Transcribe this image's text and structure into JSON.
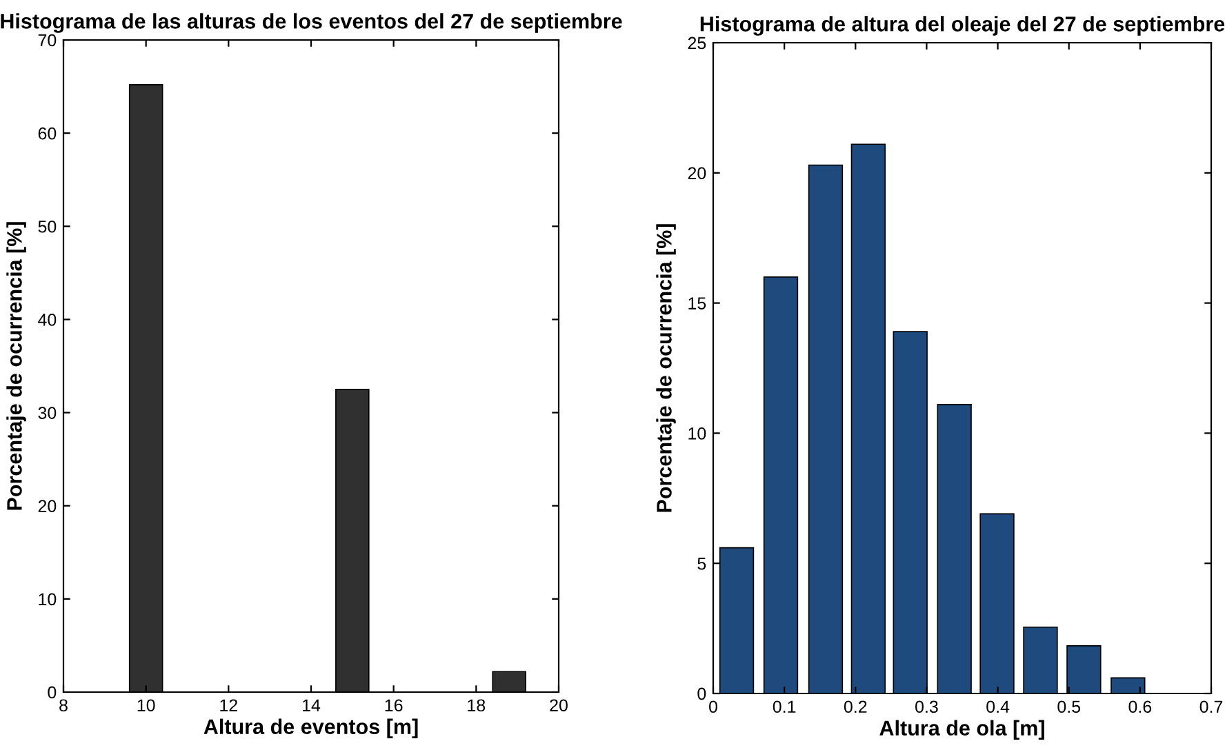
{
  "chart_data": [
    {
      "type": "bar",
      "title": "Histograma de las alturas de los eventos del 27 de septiembre",
      "xlabel": "Altura de eventos [m]",
      "ylabel": "Porcentaje de ocurrencia [%]",
      "x": [
        10,
        15,
        18.8
      ],
      "values": [
        65.2,
        32.5,
        2.2
      ],
      "color": "#303030",
      "xlim": [
        8,
        20
      ],
      "xticks": [
        8,
        10,
        12,
        14,
        16,
        18,
        20
      ],
      "ylim": [
        0,
        70
      ],
      "yticks": [
        0,
        10,
        20,
        30,
        40,
        50,
        60,
        70
      ],
      "grid": false
    },
    {
      "type": "bar",
      "title": "Histograma de altura del oleaje del 27 de septiembre",
      "xlabel": "Altura de ola [m]",
      "ylabel": "Porcentaje de ocurrencia [%]",
      "x": [
        0.033,
        0.095,
        0.158,
        0.218,
        0.277,
        0.339,
        0.399,
        0.46,
        0.521,
        0.583
      ],
      "values": [
        5.6,
        16.0,
        20.3,
        21.1,
        13.9,
        11.1,
        6.9,
        2.55,
        1.83,
        0.6
      ],
      "color": "#1f4a7e",
      "xlim": [
        0,
        0.7
      ],
      "xticks": [
        0,
        0.1,
        0.2,
        0.3,
        0.4,
        0.5,
        0.6,
        0.7
      ],
      "ylim": [
        0,
        25
      ],
      "yticks": [
        0,
        5,
        10,
        15,
        20,
        25
      ],
      "grid": false
    }
  ]
}
